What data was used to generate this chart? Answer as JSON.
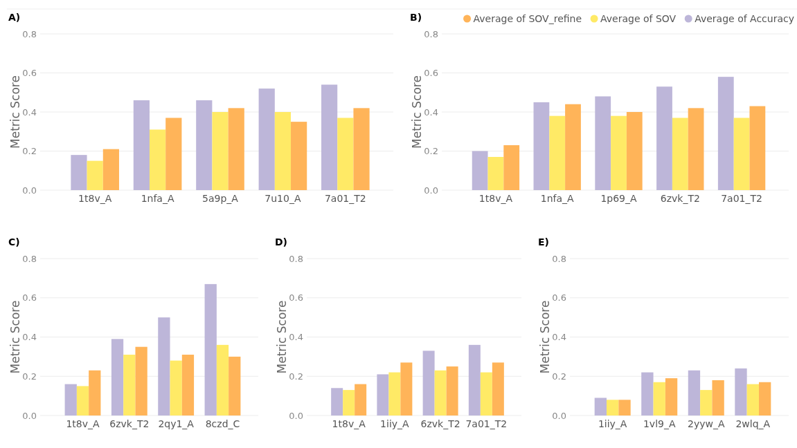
{
  "chart_data": [
    {
      "type": "bar",
      "title": "A)",
      "ylabel": "Metric Score",
      "categories": [
        "1t8v_A",
        "1nfa_A",
        "5a9p_A",
        "7u10_A",
        "7a01_T2"
      ],
      "ylim": [
        0,
        0.8
      ],
      "yticks": [
        {
          "value": 0,
          "label": "0.0"
        },
        {
          "value": 0.2,
          "label": "0.2"
        },
        {
          "value": 0.4,
          "label": "0.4"
        },
        {
          "value": 0.6,
          "label": "0.6"
        },
        {
          "value": 0.8,
          "label": "0.8"
        }
      ],
      "grid": "y",
      "series": [
        {
          "color": "#bdb6d9",
          "values": [
            0.18,
            0.46,
            0.46,
            0.52,
            0.54
          ]
        },
        {
          "color": "#ffea66",
          "values": [
            0.15,
            0.31,
            0.4,
            0.4,
            0.37
          ]
        },
        {
          "color": "#ffb459",
          "values": [
            0.21,
            0.37,
            0.42,
            0.35,
            0.42
          ]
        }
      ]
    },
    {
      "type": "bar",
      "title": "B)",
      "ylabel": "Metric Score",
      "categories": [
        "1t8v_A",
        "1nfa_A",
        "1p69_A",
        "6zvk_T2",
        "7a01_T2"
      ],
      "ylim": [
        0,
        0.8
      ],
      "yticks": [
        {
          "value": 0,
          "label": "0.0"
        },
        {
          "value": 0.2,
          "label": "0.2"
        },
        {
          "value": 0.4,
          "label": "0.4"
        },
        {
          "value": 0.6,
          "label": "0.6"
        },
        {
          "value": 0.8,
          "label": "0.8"
        }
      ],
      "grid": "y",
      "legend": "top right",
      "series": [
        {
          "name": "Average of Accuracy",
          "color": "#bdb6d9",
          "values": [
            0.2,
            0.45,
            0.48,
            0.53,
            0.58
          ]
        },
        {
          "name": "Average of SOV",
          "color": "#ffea66",
          "values": [
            0.17,
            0.38,
            0.38,
            0.37,
            0.37
          ]
        },
        {
          "name": "Average of SOV_refine",
          "color": "#ffb459",
          "values": [
            0.23,
            0.44,
            0.4,
            0.42,
            0.43
          ]
        }
      ]
    },
    {
      "type": "bar",
      "title": "C)",
      "ylabel": "Metric Score",
      "categories": [
        "1t8v_A",
        "6zvk_T2",
        "2qy1_A",
        "8czd_C"
      ],
      "ylim": [
        0,
        0.8
      ],
      "yticks": [
        {
          "value": 0,
          "label": "0.0"
        },
        {
          "value": 0.2,
          "label": "0.2"
        },
        {
          "value": 0.4,
          "label": "0.4"
        },
        {
          "value": 0.6,
          "label": "0.6"
        },
        {
          "value": 0.8,
          "label": "0.8"
        }
      ],
      "grid": "y",
      "series": [
        {
          "color": "#bdb6d9",
          "values": [
            0.16,
            0.39,
            0.5,
            0.67
          ]
        },
        {
          "color": "#ffea66",
          "values": [
            0.15,
            0.31,
            0.28,
            0.36
          ]
        },
        {
          "color": "#ffb459",
          "values": [
            0.23,
            0.35,
            0.31,
            0.3
          ]
        }
      ]
    },
    {
      "type": "bar",
      "title": "D)",
      "ylabel": "Metric Score",
      "categories": [
        "1t8v_A",
        "1iiy_A",
        "6zvk_T2",
        "7a01_T2"
      ],
      "ylim": [
        0,
        0.8
      ],
      "yticks": [
        {
          "value": 0,
          "label": "0.0"
        },
        {
          "value": 0.2,
          "label": "0.2"
        },
        {
          "value": 0.4,
          "label": "0.4"
        },
        {
          "value": 0.6,
          "label": "0.6"
        },
        {
          "value": 0.8,
          "label": "0.8"
        }
      ],
      "grid": "y",
      "series": [
        {
          "color": "#bdb6d9",
          "values": [
            0.14,
            0.21,
            0.33,
            0.36
          ]
        },
        {
          "color": "#ffea66",
          "values": [
            0.13,
            0.22,
            0.23,
            0.22
          ]
        },
        {
          "color": "#ffb459",
          "values": [
            0.16,
            0.27,
            0.25,
            0.27
          ]
        }
      ]
    },
    {
      "type": "bar",
      "title": "E)",
      "ylabel": "Metric Score",
      "categories": [
        "1iiy_A",
        "1vl9_A",
        "2yyw_A",
        "2wlq_A"
      ],
      "ylim": [
        0,
        0.8
      ],
      "yticks": [
        {
          "value": 0,
          "label": "0.0"
        },
        {
          "value": 0.2,
          "label": "0.2"
        },
        {
          "value": 0.4,
          "label": "0.4"
        },
        {
          "value": 0.6,
          "label": "0.6"
        },
        {
          "value": 0.8,
          "label": "0.8"
        }
      ],
      "grid": "y",
      "series": [
        {
          "color": "#bdb6d9",
          "values": [
            0.09,
            0.22,
            0.23,
            0.24
          ]
        },
        {
          "color": "#ffea66",
          "values": [
            0.08,
            0.17,
            0.13,
            0.16
          ]
        },
        {
          "color": "#ffb459",
          "values": [
            0.08,
            0.19,
            0.18,
            0.17
          ]
        }
      ]
    }
  ]
}
